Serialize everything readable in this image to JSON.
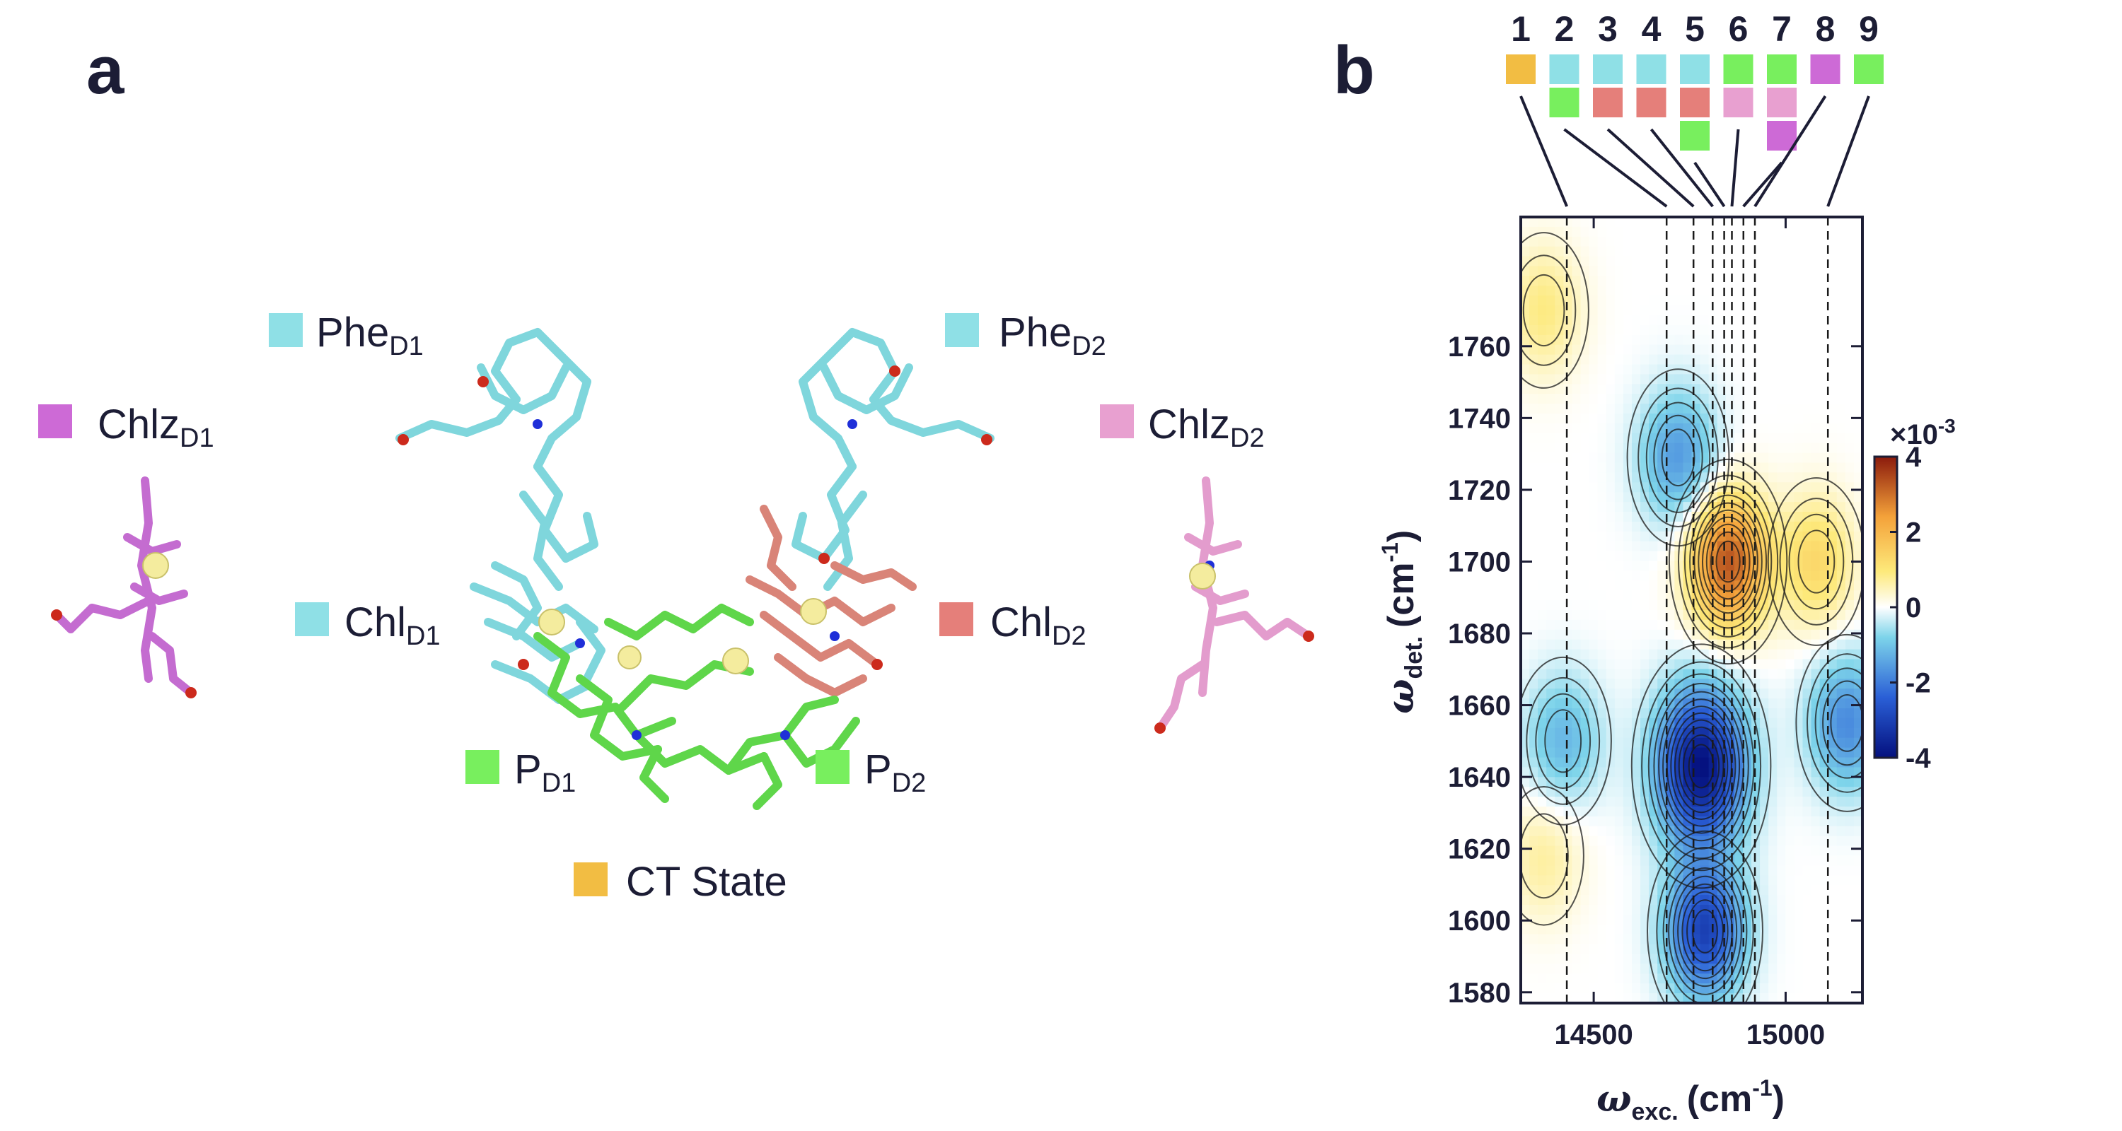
{
  "panel_a": {
    "letter": "a",
    "labels": [
      {
        "id": "phe-d1",
        "base": "Phe",
        "sub": "D1",
        "color": "#8fe0e6"
      },
      {
        "id": "phe-d2",
        "base": "Phe",
        "sub": "D2",
        "color": "#8fe0e6"
      },
      {
        "id": "chlz-d1",
        "base": "Chlz",
        "sub": "D1",
        "color": "#cd6ad6"
      },
      {
        "id": "chlz-d2",
        "base": "Chlz",
        "sub": "D2",
        "color": "#e8a0d0"
      },
      {
        "id": "chl-d1",
        "base": "Chl",
        "sub": "D1",
        "color": "#8fe0e6"
      },
      {
        "id": "chl-d2",
        "base": "Chl",
        "sub": "D2",
        "color": "#e57f7a"
      },
      {
        "id": "p-d1",
        "base": "P",
        "sub": "D1",
        "color": "#78ef5e"
      },
      {
        "id": "p-d2",
        "base": "P",
        "sub": "D2",
        "color": "#78ef5e"
      },
      {
        "id": "ct-state",
        "base": "CT State",
        "sub": "",
        "color": "#f2bd43"
      }
    ]
  },
  "panel_b": {
    "letter": "b",
    "colorbar": {
      "exponent_label": "×10",
      "exponent_sup": "-3",
      "ticks": [
        "4",
        "2",
        "0",
        "-2",
        "-4"
      ],
      "range": [
        -4,
        4
      ]
    }
  },
  "states": {
    "labels": [
      "1",
      "2",
      "3",
      "4",
      "5",
      "6",
      "7",
      "8",
      "9"
    ],
    "swatches": [
      [
        "#f2bd43"
      ],
      [
        "#8fe0e6",
        "#78ef5e"
      ],
      [
        "#8fe0e6",
        "#e57f7a"
      ],
      [
        "#8fe0e6",
        "#e57f7a"
      ],
      [
        "#8fe0e6",
        "#e57f7a",
        "#78ef5e"
      ],
      [
        "#78ef5e",
        "#e8a0d0"
      ],
      [
        "#78ef5e",
        "#e8a0d0",
        "#cd6ad6"
      ],
      [
        "#cd6ad6"
      ],
      [
        "#78ef5e"
      ]
    ]
  },
  "chart_data": {
    "type": "heatmap",
    "title": "",
    "xlabel_base": "ω",
    "xlabel_sub": "exc.",
    "xlabel_unit": "(cm",
    "xlabel_sup": "-1",
    "xlabel_close": ")",
    "ylabel_base": "ω",
    "ylabel_sub": "det.",
    "ylabel_unit": "(cm",
    "ylabel_sup": "-1",
    "ylabel_close": ")",
    "xlim": [
      14310,
      15200
    ],
    "ylim": [
      1577,
      1796
    ],
    "x_ticks": [
      14500,
      15000
    ],
    "y_ticks": [
      1580,
      1600,
      1620,
      1640,
      1660,
      1680,
      1700,
      1720,
      1740,
      1760
    ],
    "state_lines_x": [
      14430,
      14690,
      14760,
      14810,
      14840,
      14860,
      14890,
      14920,
      15110
    ],
    "blobs": [
      {
        "x": 14780,
        "y": 1643,
        "amp": -4.0
      },
      {
        "x": 14790,
        "y": 1597,
        "amp": -3.0
      },
      {
        "x": 14720,
        "y": 1729,
        "amp": -1.6
      },
      {
        "x": 15160,
        "y": 1655,
        "amp": -1.8
      },
      {
        "x": 14420,
        "y": 1650,
        "amp": -1.2
      },
      {
        "x": 14850,
        "y": 1700,
        "amp": 3.3
      },
      {
        "x": 15080,
        "y": 1700,
        "amp": 1.3
      },
      {
        "x": 14370,
        "y": 1770,
        "amp": 0.9
      },
      {
        "x": 14370,
        "y": 1618,
        "amp": 0.7
      }
    ]
  }
}
